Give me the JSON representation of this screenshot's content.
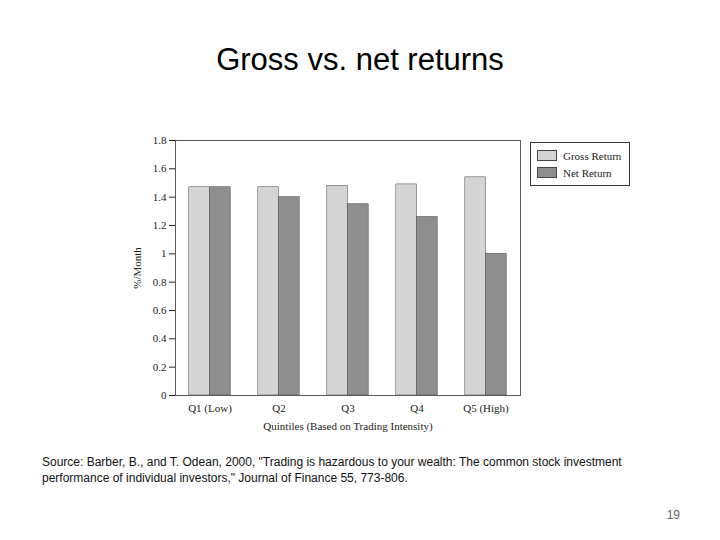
{
  "chart_data": {
    "type": "bar",
    "title": "Gross vs. net returns",
    "x_label": "Quintiles (Based on Trading Intensity)",
    "y_label": "%/Month",
    "categories": [
      "Q1 (Low)",
      "Q2",
      "Q3",
      "Q4",
      "Q5 (High)"
    ],
    "series": [
      {
        "name": "Gross Return",
        "color": "#d4d4d4",
        "values": [
          1.47,
          1.47,
          1.48,
          1.49,
          1.54
        ]
      },
      {
        "name": "Net Return",
        "color": "#8e8e8e",
        "values": [
          1.47,
          1.4,
          1.35,
          1.26,
          1.0
        ]
      }
    ],
    "ylim": [
      0,
      1.8
    ],
    "yticks": [
      0,
      0.2,
      0.4,
      0.6,
      0.8,
      1,
      1.2,
      1.4,
      1.6,
      1.8
    ],
    "grid": false,
    "legend": "top-right",
    "caption": "Source: Barber, B., and T. Odean, 2000, \"Trading is hazardous to your wealth: The common stock investment performance of individual investors,\" Journal of Finance 55, 773-806.",
    "page": "19"
  }
}
